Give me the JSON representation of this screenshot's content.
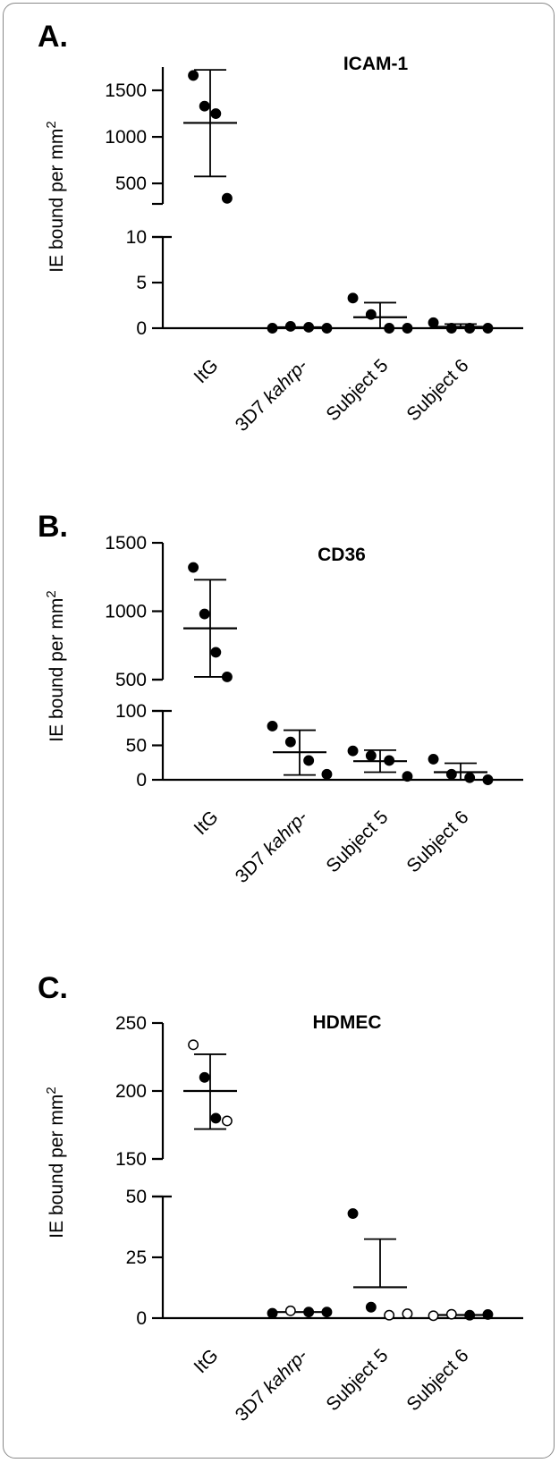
{
  "chart_data": [
    {
      "type": "scatter",
      "panel_label": "A.",
      "title": "ICAM-1",
      "ylabel": "IE bound per mm",
      "ylabel_superscript": "2",
      "categories": [
        "ItG",
        "3D7 kahrp-",
        "Subject 5",
        "Subject 6"
      ],
      "category_italic_part": {
        "3D7 kahrp-": "kahrp-"
      },
      "broken_y_axis": true,
      "y_segments": [
        {
          "range": [
            280,
            1750
          ],
          "ticks": [
            500,
            1000,
            1500
          ]
        },
        {
          "range": [
            0,
            10
          ],
          "ticks": [
            0,
            5,
            10
          ]
        }
      ],
      "points": [
        {
          "category": "ItG",
          "values": [
            1660,
            1330,
            1250,
            340
          ],
          "filled": [
            true,
            true,
            true,
            true
          ]
        },
        {
          "category": "3D7 kahrp-",
          "values": [
            0,
            0.2,
            0.1,
            0
          ],
          "filled": [
            true,
            true,
            true,
            true
          ]
        },
        {
          "category": "Subject 5",
          "values": [
            3.3,
            1.5,
            0,
            0
          ],
          "filled": [
            true,
            true,
            true,
            true
          ]
        },
        {
          "category": "Subject 6",
          "values": [
            0.6,
            0,
            0,
            0
          ],
          "filled": [
            true,
            true,
            true,
            true
          ]
        }
      ],
      "mean": [
        1150,
        0.1,
        1.2,
        0.15
      ],
      "sd_low": [
        575,
        null,
        0,
        0
      ],
      "sd_high": [
        1720,
        null,
        2.8,
        0.45
      ]
    },
    {
      "type": "scatter",
      "panel_label": "B.",
      "title": "CD36",
      "ylabel": "IE bound per mm",
      "ylabel_superscript": "2",
      "categories": [
        "ItG",
        "3D7 kahrp-",
        "Subject 5",
        "Subject 6"
      ],
      "category_italic_part": {
        "3D7 kahrp-": "kahrp-"
      },
      "broken_y_axis": true,
      "y_segments": [
        {
          "range": [
            500,
            1500
          ],
          "ticks": [
            500,
            1000,
            1500
          ]
        },
        {
          "range": [
            0,
            100
          ],
          "ticks": [
            0,
            50,
            100
          ]
        }
      ],
      "points": [
        {
          "category": "ItG",
          "values": [
            1320,
            980,
            700,
            520
          ],
          "filled": [
            true,
            true,
            true,
            true
          ]
        },
        {
          "category": "3D7 kahrp-",
          "values": [
            78,
            55,
            28,
            8
          ],
          "filled": [
            true,
            true,
            true,
            true
          ]
        },
        {
          "category": "Subject 5",
          "values": [
            42,
            35,
            28,
            5
          ],
          "filled": [
            true,
            true,
            true,
            true
          ]
        },
        {
          "category": "Subject 6",
          "values": [
            30,
            8,
            3,
            0
          ],
          "filled": [
            true,
            true,
            true,
            true
          ]
        }
      ],
      "mean": [
        875,
        40,
        27,
        11
      ],
      "sd_low": [
        520,
        7,
        11,
        0
      ],
      "sd_high": [
        1230,
        72,
        43,
        24
      ]
    },
    {
      "type": "scatter",
      "panel_label": "C.",
      "title": "HDMEC",
      "ylabel": "IE bound per mm",
      "ylabel_superscript": "2",
      "categories": [
        "ItG",
        "3D7 kahrp-",
        "Subject 5",
        "Subject 6"
      ],
      "category_italic_part": {
        "3D7 kahrp-": "kahrp-"
      },
      "broken_y_axis": true,
      "y_segments": [
        {
          "range": [
            150,
            250
          ],
          "ticks": [
            150,
            200,
            250
          ]
        },
        {
          "range": [
            0,
            50
          ],
          "ticks": [
            0,
            25,
            50
          ]
        }
      ],
      "points": [
        {
          "category": "ItG",
          "values": [
            234,
            210,
            180,
            178
          ],
          "filled": [
            false,
            true,
            true,
            false
          ]
        },
        {
          "category": "3D7 kahrp-",
          "values": [
            2,
            3,
            2.5,
            2.5
          ],
          "filled": [
            true,
            false,
            true,
            true
          ]
        },
        {
          "category": "Subject 5",
          "values": [
            43,
            4.5,
            1.2,
            1.8
          ],
          "filled": [
            true,
            true,
            false,
            false
          ]
        },
        {
          "category": "Subject 6",
          "values": [
            1,
            1.6,
            1.2,
            1.5
          ],
          "filled": [
            false,
            false,
            true,
            true
          ]
        }
      ],
      "mean": [
        200,
        2.5,
        12.7,
        1.3
      ],
      "sd_low": [
        172,
        null,
        null,
        null
      ],
      "sd_high": [
        227,
        null,
        32.5,
        null
      ]
    }
  ]
}
